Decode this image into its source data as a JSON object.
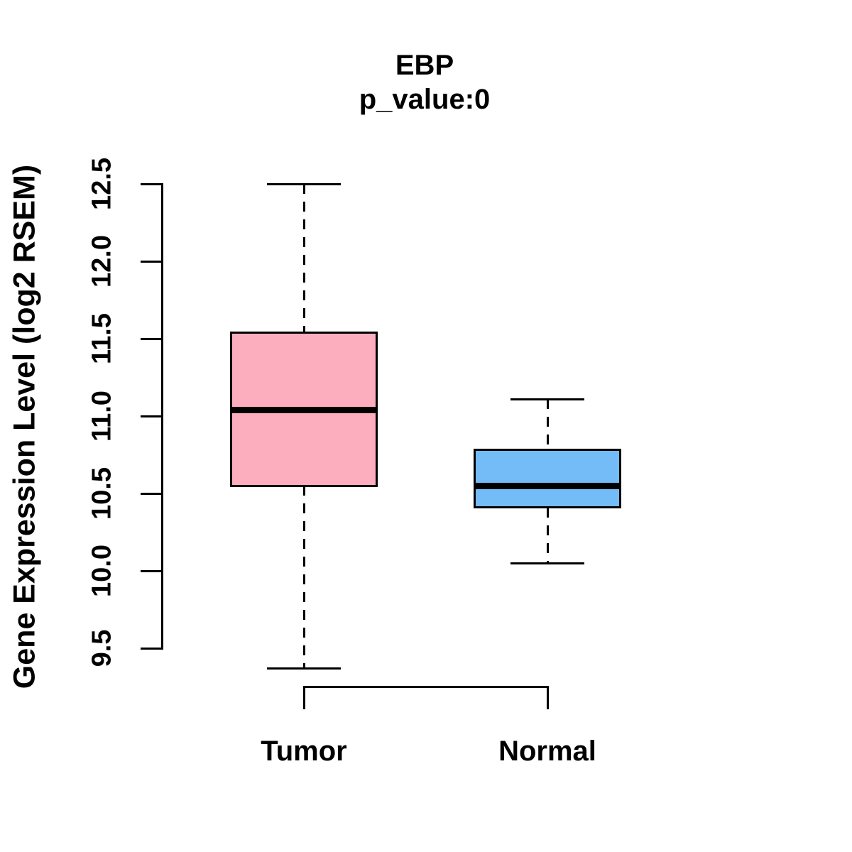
{
  "chart_data": {
    "type": "boxplot",
    "title": "EBP",
    "subtitle": "p_value:0",
    "ylabel": "Gene Expression Level (log2 RSEM)",
    "xlabel": "",
    "ylim": [
      9.5,
      12.5
    ],
    "ytick_labels": [
      "9.5",
      "10.0",
      "10.5",
      "11.0",
      "11.5",
      "12.0",
      "12.5"
    ],
    "ytick_values": [
      9.5,
      10.0,
      10.5,
      11.0,
      11.5,
      12.0,
      12.5
    ],
    "grid": false,
    "legend": "none",
    "categories": [
      "Tumor",
      "Normal"
    ],
    "series": [
      {
        "name": "Tumor",
        "color": "#FDAEBE",
        "whisker_low": 9.37,
        "q1": 10.55,
        "median": 11.04,
        "q3": 11.54,
        "whisker_high": 12.5
      },
      {
        "name": "Normal",
        "color": "#73BCF7",
        "whisker_low": 10.05,
        "q1": 10.41,
        "median": 10.55,
        "q3": 10.78,
        "whisker_high": 11.11
      }
    ]
  },
  "colors": {
    "line": "#000000",
    "background": "#FFFFFF",
    "tumor_fill": "#FDAEBE",
    "normal_fill": "#73BCF7"
  }
}
